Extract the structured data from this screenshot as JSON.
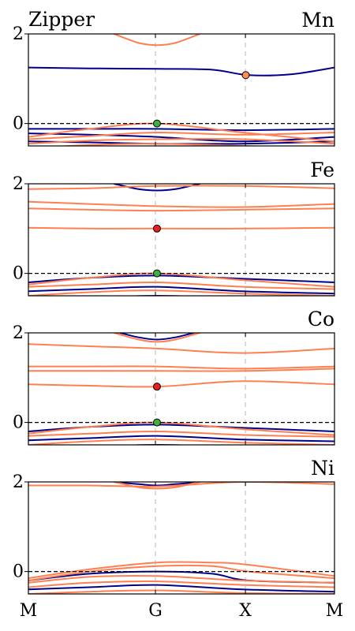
{
  "figure_title": "Zipper",
  "x_ticks": [
    "M",
    "G",
    "X",
    "M"
  ],
  "chart_data": [
    {
      "type": "line",
      "panel_label": "Mn",
      "ylim": [
        -0.5,
        2
      ],
      "y_ticks": [
        0,
        2
      ],
      "x_ticks": [
        "M",
        "G",
        "X",
        "M"
      ],
      "fermi_level": 0,
      "series": [
        {
          "color": "#00008b",
          "x": [
            0,
            0.2,
            0.42,
            0.6,
            0.72,
            0.86,
            1.0
          ],
          "y": [
            1.25,
            1.23,
            1.22,
            1.2,
            1.08,
            1.1,
            1.25
          ]
        },
        {
          "color": "#00008b",
          "x": [
            0,
            0.2,
            0.42,
            0.7,
            1.0
          ],
          "y": [
            -0.12,
            -0.12,
            -0.12,
            -0.15,
            -0.12
          ]
        },
        {
          "color": "#00008b",
          "x": [
            0,
            0.2,
            0.42,
            0.7,
            1.0
          ],
          "y": [
            -0.22,
            -0.25,
            -0.3,
            -0.4,
            -0.3
          ]
        },
        {
          "color": "#00008b",
          "x": [
            0,
            0.2,
            0.42,
            0.7,
            1.0
          ],
          "y": [
            -0.4,
            -0.42,
            -0.45,
            -0.45,
            -0.4
          ]
        },
        {
          "color": "#00008b",
          "x": [
            0,
            0.3,
            0.5,
            0.72,
            1.0
          ],
          "y": [
            -0.82,
            -0.9,
            -0.95,
            -1.0,
            -0.85
          ]
        },
        {
          "color": "#00008b",
          "x": [
            0,
            0.2,
            0.42,
            0.7,
            1.0
          ],
          "y": [
            -0.9,
            -1.0,
            -0.95,
            -0.92,
            -1.0
          ]
        },
        {
          "color": "#ff7f50",
          "x": [
            0.28,
            0.36,
            0.42,
            0.48,
            0.56
          ],
          "y": [
            2.0,
            1.8,
            1.75,
            1.8,
            2.0
          ]
        },
        {
          "color": "#ff7f50",
          "x": [
            0,
            0.2,
            0.42,
            0.7,
            1.0
          ],
          "y": [
            -0.3,
            -0.12,
            0.0,
            -0.2,
            -0.4
          ]
        },
        {
          "color": "#ff7f50",
          "x": [
            0,
            0.2,
            0.42,
            0.7,
            1.0
          ],
          "y": [
            -0.35,
            -0.28,
            -0.2,
            -0.25,
            -0.2
          ]
        },
        {
          "color": "#ff7f50",
          "x": [
            0,
            0.2,
            0.42,
            0.7,
            1.0
          ],
          "y": [
            -0.45,
            -0.38,
            -0.35,
            -0.35,
            -0.45
          ]
        },
        {
          "color": "#ff7f50",
          "x": [
            0,
            0.2,
            0.42,
            0.7,
            1.0
          ],
          "y": [
            -0.55,
            -0.48,
            -0.45,
            -0.5,
            -0.55
          ]
        },
        {
          "color": "#ff7f50",
          "x": [
            0,
            0.2,
            0.42,
            0.7,
            1.0
          ],
          "y": [
            -0.7,
            -0.6,
            -0.62,
            -0.65,
            -0.6
          ]
        },
        {
          "color": "#ff7f50",
          "x": [
            0,
            0.2,
            0.42,
            0.7,
            1.0
          ],
          "y": [
            -0.75,
            -0.72,
            -0.75,
            -0.8,
            -0.72
          ]
        },
        {
          "color": "#ff7f50",
          "x": [
            0,
            0.2,
            0.42,
            0.7,
            1.0
          ],
          "y": [
            -0.88,
            -0.85,
            -0.85,
            -0.85,
            -0.88
          ]
        },
        {
          "color": "#ff7f50",
          "x": [
            0,
            0.2,
            0.42,
            0.7,
            1.0
          ],
          "y": [
            -0.95,
            -0.95,
            -0.9,
            -1.0,
            -0.95
          ]
        }
      ],
      "markers": [
        {
          "x": 0.42,
          "y": 0.0,
          "color": "#3cb043"
        },
        {
          "x": 0.71,
          "y": 1.08,
          "color": "#ff8c5a"
        }
      ]
    },
    {
      "type": "line",
      "panel_label": "Fe",
      "ylim": [
        -0.5,
        2
      ],
      "y_ticks": [
        0,
        2
      ],
      "x_ticks": [
        "M",
        "G",
        "X",
        "M"
      ],
      "fermi_level": 0,
      "series": [
        {
          "color": "#00008b",
          "x": [
            0.28,
            0.36,
            0.42,
            0.48,
            0.56
          ],
          "y": [
            2.0,
            1.88,
            1.85,
            1.88,
            2.0
          ]
        },
        {
          "color": "#00008b",
          "x": [
            0,
            0.2,
            0.42,
            0.7,
            1.0
          ],
          "y": [
            -0.2,
            -0.1,
            -0.05,
            -0.12,
            -0.2
          ]
        },
        {
          "color": "#00008b",
          "x": [
            0,
            0.2,
            0.42,
            0.7,
            1.0
          ],
          "y": [
            -0.4,
            -0.35,
            -0.3,
            -0.4,
            -0.45
          ]
        },
        {
          "color": "#00008b",
          "x": [
            0,
            0.2,
            0.42,
            0.7,
            1.0
          ],
          "y": [
            -0.6,
            -0.55,
            -0.5,
            -0.55,
            -0.6
          ]
        },
        {
          "color": "#00008b",
          "x": [
            0,
            0.2,
            0.42,
            0.7,
            1.0
          ],
          "y": [
            -0.8,
            -0.75,
            -0.7,
            -0.75,
            -0.8
          ]
        },
        {
          "color": "#00008b",
          "x": [
            0,
            0.2,
            0.42,
            0.7,
            1.0
          ],
          "y": [
            -0.95,
            -0.9,
            -0.88,
            -0.9,
            -0.95
          ]
        },
        {
          "color": "#ff7f50",
          "x": [
            0,
            0.2,
            0.42,
            0.7,
            1.0
          ],
          "y": [
            1.88,
            1.9,
            1.95,
            1.95,
            1.9
          ]
        },
        {
          "color": "#ff7f50",
          "x": [
            0,
            0.2,
            0.42,
            0.7,
            1.0
          ],
          "y": [
            1.6,
            1.55,
            1.5,
            1.48,
            1.55
          ]
        },
        {
          "color": "#ff7f50",
          "x": [
            0,
            0.2,
            0.42,
            0.7,
            1.0
          ],
          "y": [
            1.45,
            1.42,
            1.4,
            1.42,
            1.45
          ]
        },
        {
          "color": "#ff7f50",
          "x": [
            0,
            0.2,
            0.42,
            0.7,
            1.0
          ],
          "y": [
            1.02,
            1.0,
            1.0,
            1.0,
            1.02
          ]
        },
        {
          "color": "#ff7f50",
          "x": [
            0,
            0.2,
            0.42,
            0.7,
            1.0
          ],
          "y": [
            -0.25,
            -0.1,
            0.0,
            -0.15,
            -0.3
          ]
        },
        {
          "color": "#ff7f50",
          "x": [
            0,
            0.2,
            0.42,
            0.7,
            1.0
          ],
          "y": [
            -0.3,
            -0.25,
            -0.2,
            -0.3,
            -0.35
          ]
        },
        {
          "color": "#ff7f50",
          "x": [
            0,
            0.2,
            0.42,
            0.7,
            1.0
          ],
          "y": [
            -0.5,
            -0.42,
            -0.38,
            -0.45,
            -0.5
          ]
        },
        {
          "color": "#ff7f50",
          "x": [
            0,
            0.2,
            0.42,
            0.7,
            1.0
          ],
          "y": [
            -0.7,
            -0.62,
            -0.6,
            -0.65,
            -0.68
          ]
        },
        {
          "color": "#ff7f50",
          "x": [
            0,
            0.2,
            0.42,
            0.7,
            1.0
          ],
          "y": [
            -0.85,
            -0.82,
            -0.8,
            -0.8,
            -0.85
          ]
        }
      ],
      "markers": [
        {
          "x": 0.42,
          "y": 1.0,
          "color": "#e8211d"
        },
        {
          "x": 0.42,
          "y": 0.0,
          "color": "#3cb043"
        }
      ]
    },
    {
      "type": "line",
      "panel_label": "Co",
      "ylim": [
        -0.5,
        2
      ],
      "y_ticks": [
        0,
        2
      ],
      "x_ticks": [
        "M",
        "G",
        "X",
        "M"
      ],
      "fermi_level": 0,
      "series": [
        {
          "color": "#00008b",
          "x": [
            0.3,
            0.36,
            0.42,
            0.48,
            0.54
          ],
          "y": [
            2.0,
            1.9,
            1.85,
            1.9,
            2.0
          ]
        },
        {
          "color": "#00008b",
          "x": [
            0,
            0.2,
            0.42,
            0.7,
            1.0
          ],
          "y": [
            -0.2,
            -0.1,
            -0.05,
            -0.12,
            -0.2
          ]
        },
        {
          "color": "#00008b",
          "x": [
            0,
            0.2,
            0.42,
            0.7,
            1.0
          ],
          "y": [
            -0.4,
            -0.35,
            -0.3,
            -0.38,
            -0.42
          ]
        },
        {
          "color": "#00008b",
          "x": [
            0,
            0.2,
            0.42,
            0.7,
            1.0
          ],
          "y": [
            -0.6,
            -0.55,
            -0.5,
            -0.55,
            -0.6
          ]
        },
        {
          "color": "#00008b",
          "x": [
            0,
            0.2,
            0.42,
            0.7,
            1.0
          ],
          "y": [
            -0.8,
            -0.75,
            -0.7,
            -0.78,
            -0.82
          ]
        },
        {
          "color": "#00008b",
          "x": [
            0,
            0.2,
            0.42,
            0.7,
            1.0
          ],
          "y": [
            -0.95,
            -0.9,
            -0.88,
            -0.92,
            -0.95
          ]
        },
        {
          "color": "#ff7f50",
          "x": [
            0.28,
            0.36,
            0.42,
            0.48,
            0.56
          ],
          "y": [
            2.0,
            1.85,
            1.8,
            1.85,
            2.0
          ]
        },
        {
          "color": "#ff7f50",
          "x": [
            0,
            0.2,
            0.42,
            0.7,
            1.0
          ],
          "y": [
            1.75,
            1.7,
            1.65,
            1.55,
            1.65
          ]
        },
        {
          "color": "#ff7f50",
          "x": [
            0,
            0.2,
            0.42,
            0.7,
            1.0
          ],
          "y": [
            1.25,
            1.25,
            1.25,
            1.2,
            1.25
          ]
        },
        {
          "color": "#ff7f50",
          "x": [
            0,
            0.2,
            0.42,
            0.7,
            1.0
          ],
          "y": [
            1.15,
            1.15,
            1.15,
            1.15,
            1.2
          ]
        },
        {
          "color": "#ff7f50",
          "x": [
            0,
            0.2,
            0.42,
            0.7,
            1.0
          ],
          "y": [
            0.85,
            0.82,
            0.8,
            0.92,
            0.85
          ]
        },
        {
          "color": "#ff7f50",
          "x": [
            0,
            0.2,
            0.42,
            0.7,
            1.0
          ],
          "y": [
            -0.25,
            -0.1,
            0.0,
            -0.15,
            -0.28
          ]
        },
        {
          "color": "#ff7f50",
          "x": [
            0,
            0.2,
            0.42,
            0.7,
            1.0
          ],
          "y": [
            -0.3,
            -0.25,
            -0.2,
            -0.28,
            -0.32
          ]
        },
        {
          "color": "#ff7f50",
          "x": [
            0,
            0.2,
            0.42,
            0.7,
            1.0
          ],
          "y": [
            -0.5,
            -0.42,
            -0.38,
            -0.45,
            -0.5
          ]
        },
        {
          "color": "#ff7f50",
          "x": [
            0,
            0.2,
            0.42,
            0.7,
            1.0
          ],
          "y": [
            -0.7,
            -0.62,
            -0.6,
            -0.65,
            -0.7
          ]
        },
        {
          "color": "#ff7f50",
          "x": [
            0,
            0.2,
            0.42,
            0.7,
            1.0
          ],
          "y": [
            -0.88,
            -0.85,
            -0.82,
            -0.85,
            -0.88
          ]
        }
      ],
      "markers": [
        {
          "x": 0.42,
          "y": 0.8,
          "color": "#e8211d"
        },
        {
          "x": 0.42,
          "y": 0.0,
          "color": "#3cb043"
        }
      ]
    },
    {
      "type": "line",
      "panel_label": "Ni",
      "ylim": [
        -0.5,
        2
      ],
      "y_ticks": [
        0,
        2
      ],
      "x_ticks": [
        "M",
        "G",
        "X",
        "M"
      ],
      "fermi_level": 0,
      "series": [
        {
          "color": "#00008b",
          "x": [
            0.28,
            0.36,
            0.42,
            0.48,
            0.56
          ],
          "y": [
            2.0,
            1.95,
            1.92,
            1.95,
            2.0
          ]
        },
        {
          "color": "#00008b",
          "x": [
            0,
            0.2,
            0.42,
            0.6,
            0.72,
            1.0
          ],
          "y": [
            -0.2,
            -0.05,
            0.0,
            -0.05,
            -0.2,
            -0.25
          ]
        },
        {
          "color": "#00008b",
          "x": [
            0,
            0.2,
            0.42,
            0.7,
            1.0
          ],
          "y": [
            -0.4,
            -0.35,
            -0.3,
            -0.4,
            -0.45
          ]
        },
        {
          "color": "#00008b",
          "x": [
            0,
            0.2,
            0.42,
            0.7,
            1.0
          ],
          "y": [
            -0.6,
            -0.58,
            -0.55,
            -0.6,
            -0.62
          ]
        },
        {
          "color": "#00008b",
          "x": [
            0,
            0.2,
            0.42,
            0.7,
            1.0
          ],
          "y": [
            -0.85,
            -0.8,
            -0.75,
            -0.8,
            -0.85
          ]
        },
        {
          "color": "#ff7f50",
          "x": [
            0,
            0.2,
            0.42,
            0.7,
            1.0
          ],
          "y": [
            1.92,
            1.92,
            1.9,
            2.0,
            1.95
          ]
        },
        {
          "color": "#ff7f50",
          "x": [
            0.28,
            0.36,
            0.42,
            0.48,
            0.56
          ],
          "y": [
            2.0,
            1.88,
            1.85,
            1.88,
            2.0
          ]
        },
        {
          "color": "#ff7f50",
          "x": [
            0,
            0.2,
            0.42,
            0.6,
            0.72,
            1.0
          ],
          "y": [
            -0.15,
            0.05,
            0.2,
            0.2,
            0.15,
            -0.1
          ]
        },
        {
          "color": "#ff7f50",
          "x": [
            0,
            0.2,
            0.42,
            0.6,
            0.72,
            1.0
          ],
          "y": [
            -0.2,
            0.0,
            0.12,
            0.12,
            0.0,
            -0.15
          ]
        },
        {
          "color": "#ff7f50",
          "x": [
            0,
            0.2,
            0.42,
            0.7,
            1.0
          ],
          "y": [
            -0.25,
            -0.12,
            -0.1,
            -0.2,
            -0.25
          ]
        },
        {
          "color": "#ff7f50",
          "x": [
            0,
            0.2,
            0.42,
            0.7,
            1.0
          ],
          "y": [
            -0.35,
            -0.25,
            -0.22,
            -0.3,
            -0.35
          ]
        },
        {
          "color": "#ff7f50",
          "x": [
            0,
            0.2,
            0.42,
            0.7,
            1.0
          ],
          "y": [
            -0.5,
            -0.45,
            -0.42,
            -0.48,
            -0.5
          ]
        },
        {
          "color": "#ff7f50",
          "x": [
            0,
            0.2,
            0.42,
            0.7,
            1.0
          ],
          "y": [
            -0.75,
            -0.68,
            -0.65,
            -0.7,
            -0.72
          ]
        }
      ],
      "markers": []
    }
  ]
}
